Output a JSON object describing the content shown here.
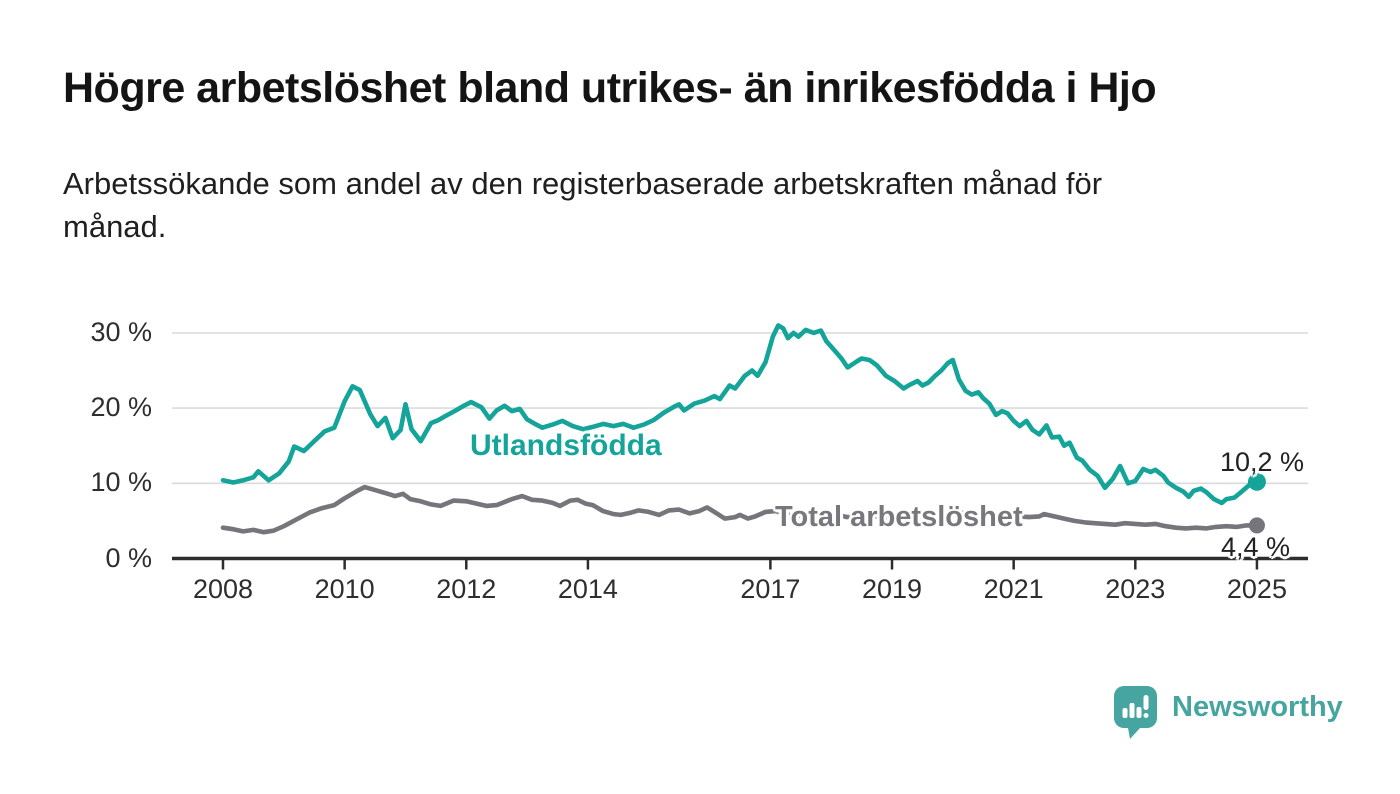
{
  "header": {
    "title": "Högre arbetslöshet bland utrikes- än inrikesfödda i Hjo",
    "subtitle_lines": [
      "Arbetssökande som andel av den registerbaserade arbetskraften månad för",
      "månad."
    ]
  },
  "colors": {
    "accent_teal": "#14a49a",
    "line_gray": "#75757b",
    "axis": "#2d2d2d",
    "gridline": "#dbdbdb",
    "tick_text": "#2e2e2e",
    "logo_teal": "#46a5a1"
  },
  "chart_data": {
    "type": "line",
    "grid": "horizontal",
    "legend_position": "inline-labels",
    "x_axis": {
      "ticks": [
        2008,
        2010,
        2012,
        2014,
        2017,
        2019,
        2021,
        2023,
        2025
      ],
      "labels": [
        "2008",
        "2010",
        "2012",
        "2014",
        "2017",
        "2019",
        "2021",
        "2023",
        "2025"
      ],
      "range_years": [
        2007.16,
        2025.84
      ]
    },
    "y_axis": {
      "ticks": [
        0,
        10,
        20,
        30
      ],
      "labels": [
        "0 %",
        "10 %",
        "20 %",
        "30 %"
      ],
      "range": [
        0,
        32
      ]
    },
    "series": [
      {
        "name": "Utlandsfödda",
        "color": "#14a49a",
        "end_label": "10,2 %",
        "end_value": 10.2,
        "points": [
          [
            2008.0,
            10.4
          ],
          [
            2008.17,
            10.1
          ],
          [
            2008.33,
            10.4
          ],
          [
            2008.5,
            10.8
          ],
          [
            2008.58,
            11.6
          ],
          [
            2008.75,
            10.4
          ],
          [
            2008.92,
            11.3
          ],
          [
            2009.08,
            12.9
          ],
          [
            2009.17,
            14.9
          ],
          [
            2009.33,
            14.3
          ],
          [
            2009.5,
            15.6
          ],
          [
            2009.67,
            16.9
          ],
          [
            2009.83,
            17.4
          ],
          [
            2010.0,
            20.9
          ],
          [
            2010.13,
            22.9
          ],
          [
            2010.25,
            22.4
          ],
          [
            2010.42,
            19.2
          ],
          [
            2010.54,
            17.6
          ],
          [
            2010.67,
            18.7
          ],
          [
            2010.79,
            16.0
          ],
          [
            2010.92,
            17.1
          ],
          [
            2011.0,
            20.5
          ],
          [
            2011.1,
            17.2
          ],
          [
            2011.25,
            15.6
          ],
          [
            2011.42,
            18.0
          ],
          [
            2011.54,
            18.4
          ],
          [
            2011.67,
            19.0
          ],
          [
            2011.83,
            19.7
          ],
          [
            2011.96,
            20.3
          ],
          [
            2012.08,
            20.8
          ],
          [
            2012.25,
            20.1
          ],
          [
            2012.38,
            18.6
          ],
          [
            2012.5,
            19.7
          ],
          [
            2012.63,
            20.3
          ],
          [
            2012.75,
            19.6
          ],
          [
            2012.88,
            19.9
          ],
          [
            2013.0,
            18.5
          ],
          [
            2013.13,
            17.9
          ],
          [
            2013.25,
            17.4
          ],
          [
            2013.42,
            17.8
          ],
          [
            2013.58,
            18.3
          ],
          [
            2013.75,
            17.6
          ],
          [
            2013.92,
            17.2
          ],
          [
            2014.08,
            17.5
          ],
          [
            2014.25,
            17.9
          ],
          [
            2014.42,
            17.6
          ],
          [
            2014.58,
            17.9
          ],
          [
            2014.75,
            17.4
          ],
          [
            2014.92,
            17.8
          ],
          [
            2015.08,
            18.4
          ],
          [
            2015.25,
            19.4
          ],
          [
            2015.42,
            20.2
          ],
          [
            2015.5,
            20.5
          ],
          [
            2015.58,
            19.7
          ],
          [
            2015.75,
            20.6
          ],
          [
            2015.92,
            21.0
          ],
          [
            2016.08,
            21.6
          ],
          [
            2016.17,
            21.2
          ],
          [
            2016.33,
            23.0
          ],
          [
            2016.42,
            22.6
          ],
          [
            2016.58,
            24.3
          ],
          [
            2016.7,
            25.0
          ],
          [
            2016.79,
            24.3
          ],
          [
            2016.92,
            26.1
          ],
          [
            2017.04,
            29.5
          ],
          [
            2017.13,
            31.0
          ],
          [
            2017.21,
            30.6
          ],
          [
            2017.29,
            29.3
          ],
          [
            2017.38,
            30.0
          ],
          [
            2017.46,
            29.5
          ],
          [
            2017.58,
            30.4
          ],
          [
            2017.71,
            30.0
          ],
          [
            2017.83,
            30.3
          ],
          [
            2017.92,
            28.9
          ],
          [
            2018.04,
            27.8
          ],
          [
            2018.17,
            26.6
          ],
          [
            2018.27,
            25.4
          ],
          [
            2018.42,
            26.2
          ],
          [
            2018.5,
            26.6
          ],
          [
            2018.63,
            26.4
          ],
          [
            2018.75,
            25.7
          ],
          [
            2018.9,
            24.3
          ],
          [
            2019.04,
            23.6
          ],
          [
            2019.19,
            22.6
          ],
          [
            2019.29,
            23.1
          ],
          [
            2019.42,
            23.6
          ],
          [
            2019.5,
            23.0
          ],
          [
            2019.6,
            23.4
          ],
          [
            2019.71,
            24.3
          ],
          [
            2019.81,
            25.0
          ],
          [
            2019.92,
            26.0
          ],
          [
            2020.0,
            26.4
          ],
          [
            2020.1,
            23.8
          ],
          [
            2020.21,
            22.3
          ],
          [
            2020.31,
            21.8
          ],
          [
            2020.42,
            22.1
          ],
          [
            2020.5,
            21.3
          ],
          [
            2020.6,
            20.6
          ],
          [
            2020.71,
            19.1
          ],
          [
            2020.81,
            19.6
          ],
          [
            2020.9,
            19.3
          ],
          [
            2021.0,
            18.3
          ],
          [
            2021.1,
            17.6
          ],
          [
            2021.21,
            18.3
          ],
          [
            2021.31,
            17.1
          ],
          [
            2021.42,
            16.5
          ],
          [
            2021.54,
            17.7
          ],
          [
            2021.63,
            16.1
          ],
          [
            2021.75,
            16.2
          ],
          [
            2021.83,
            15.0
          ],
          [
            2021.92,
            15.4
          ],
          [
            2022.04,
            13.4
          ],
          [
            2022.13,
            13.0
          ],
          [
            2022.25,
            11.8
          ],
          [
            2022.38,
            11.0
          ],
          [
            2022.5,
            9.4
          ],
          [
            2022.63,
            10.6
          ],
          [
            2022.75,
            12.3
          ],
          [
            2022.88,
            10.0
          ],
          [
            2023.0,
            10.3
          ],
          [
            2023.13,
            11.9
          ],
          [
            2023.25,
            11.5
          ],
          [
            2023.33,
            11.8
          ],
          [
            2023.46,
            11.0
          ],
          [
            2023.54,
            10.1
          ],
          [
            2023.67,
            9.4
          ],
          [
            2023.79,
            8.9
          ],
          [
            2023.88,
            8.2
          ],
          [
            2023.96,
            9.0
          ],
          [
            2024.08,
            9.3
          ],
          [
            2024.17,
            8.8
          ],
          [
            2024.29,
            7.9
          ],
          [
            2024.42,
            7.4
          ],
          [
            2024.5,
            7.9
          ],
          [
            2024.63,
            8.1
          ],
          [
            2024.75,
            8.9
          ],
          [
            2024.88,
            9.8
          ],
          [
            2025.0,
            10.2
          ]
        ]
      },
      {
        "name": "Total arbetslöshet",
        "color": "#75757b",
        "end_label": "4,4 %",
        "end_value": 4.4,
        "points": [
          [
            2008.0,
            4.1
          ],
          [
            2008.17,
            3.9
          ],
          [
            2008.33,
            3.6
          ],
          [
            2008.5,
            3.8
          ],
          [
            2008.67,
            3.5
          ],
          [
            2008.83,
            3.7
          ],
          [
            2009.0,
            4.3
          ],
          [
            2009.21,
            5.2
          ],
          [
            2009.42,
            6.1
          ],
          [
            2009.63,
            6.7
          ],
          [
            2009.83,
            7.1
          ],
          [
            2010.0,
            8.0
          ],
          [
            2010.21,
            9.0
          ],
          [
            2010.33,
            9.5
          ],
          [
            2010.5,
            9.1
          ],
          [
            2010.67,
            8.7
          ],
          [
            2010.83,
            8.3
          ],
          [
            2010.96,
            8.6
          ],
          [
            2011.08,
            7.9
          ],
          [
            2011.25,
            7.6
          ],
          [
            2011.42,
            7.2
          ],
          [
            2011.58,
            7.0
          ],
          [
            2011.79,
            7.7
          ],
          [
            2012.0,
            7.6
          ],
          [
            2012.17,
            7.3
          ],
          [
            2012.33,
            7.0
          ],
          [
            2012.5,
            7.1
          ],
          [
            2012.75,
            7.9
          ],
          [
            2012.92,
            8.3
          ],
          [
            2013.08,
            7.8
          ],
          [
            2013.25,
            7.7
          ],
          [
            2013.42,
            7.4
          ],
          [
            2013.54,
            7.0
          ],
          [
            2013.71,
            7.7
          ],
          [
            2013.83,
            7.8
          ],
          [
            2013.96,
            7.3
          ],
          [
            2014.08,
            7.1
          ],
          [
            2014.25,
            6.3
          ],
          [
            2014.42,
            5.9
          ],
          [
            2014.54,
            5.8
          ],
          [
            2014.71,
            6.1
          ],
          [
            2014.83,
            6.4
          ],
          [
            2015.0,
            6.2
          ],
          [
            2015.17,
            5.8
          ],
          [
            2015.33,
            6.4
          ],
          [
            2015.5,
            6.5
          ],
          [
            2015.67,
            6.0
          ],
          [
            2015.83,
            6.3
          ],
          [
            2015.96,
            6.8
          ],
          [
            2016.08,
            6.2
          ],
          [
            2016.25,
            5.3
          ],
          [
            2016.42,
            5.5
          ],
          [
            2016.5,
            5.8
          ],
          [
            2016.63,
            5.3
          ],
          [
            2016.75,
            5.6
          ],
          [
            2016.92,
            6.2
          ],
          [
            2017.08,
            6.3
          ],
          [
            2017.25,
            5.9
          ],
          [
            2017.42,
            5.6
          ],
          [
            2017.58,
            5.8
          ],
          [
            2017.75,
            5.5
          ],
          [
            2017.92,
            5.7
          ],
          [
            2018.08,
            5.9
          ],
          [
            2018.25,
            5.5
          ],
          [
            2018.42,
            5.7
          ],
          [
            2018.58,
            5.4
          ],
          [
            2018.75,
            5.6
          ],
          [
            2018.92,
            5.3
          ],
          [
            2019.08,
            5.6
          ],
          [
            2019.25,
            5.4
          ],
          [
            2019.42,
            5.7
          ],
          [
            2019.58,
            5.4
          ],
          [
            2019.75,
            5.6
          ],
          [
            2019.92,
            5.8
          ],
          [
            2020.08,
            6.1
          ],
          [
            2020.25,
            6.0
          ],
          [
            2020.42,
            5.9
          ],
          [
            2020.58,
            5.8
          ],
          [
            2020.75,
            5.9
          ],
          [
            2020.92,
            5.7
          ],
          [
            2021.08,
            5.6
          ],
          [
            2021.25,
            5.5
          ],
          [
            2021.42,
            5.6
          ],
          [
            2021.5,
            5.9
          ],
          [
            2021.67,
            5.6
          ],
          [
            2021.83,
            5.3
          ],
          [
            2022.0,
            5.0
          ],
          [
            2022.17,
            4.8
          ],
          [
            2022.33,
            4.7
          ],
          [
            2022.5,
            4.6
          ],
          [
            2022.67,
            4.5
          ],
          [
            2022.83,
            4.7
          ],
          [
            2023.0,
            4.6
          ],
          [
            2023.17,
            4.5
          ],
          [
            2023.33,
            4.6
          ],
          [
            2023.5,
            4.3
          ],
          [
            2023.67,
            4.1
          ],
          [
            2023.83,
            4.0
          ],
          [
            2024.0,
            4.1
          ],
          [
            2024.17,
            4.0
          ],
          [
            2024.33,
            4.2
          ],
          [
            2024.5,
            4.3
          ],
          [
            2024.67,
            4.2
          ],
          [
            2024.83,
            4.4
          ],
          [
            2025.0,
            4.4
          ]
        ]
      }
    ]
  },
  "branding": {
    "name": "Newsworthy"
  }
}
